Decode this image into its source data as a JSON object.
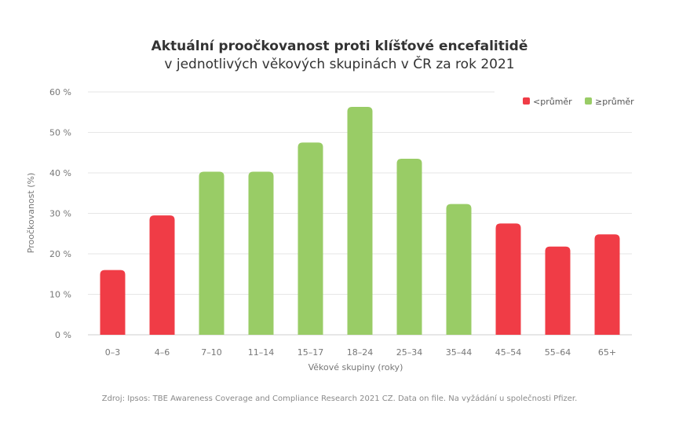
{
  "title": "Aktuální proočkovanost proti klíšťové encefalitidě",
  "subtitle": "v jednotlivých věkových skupinách v ČR za rok 2021",
  "source": "Zdroj: Ipsos: TBE Awareness Coverage and Compliance Research 2021 CZ. Data on file. Na vyžádání u společnosti Pfizer.",
  "chart_data": {
    "type": "bar",
    "xlabel": "Věkové skupiny (roky)",
    "ylabel": "Proočkovanost (%)",
    "ylim": [
      0,
      60
    ],
    "yticks": [
      0,
      10,
      20,
      30,
      40,
      50,
      60
    ],
    "ytick_labels": [
      "0 %",
      "10 %",
      "20 %",
      "30 %",
      "40 %",
      "50 %",
      "60 %"
    ],
    "grid": true,
    "legend_position": "top-right",
    "categories": [
      "0–3",
      "4–6",
      "7–10",
      "11–14",
      "15–17",
      "18–24",
      "25–34",
      "35–44",
      "45–54",
      "55–64",
      "65+"
    ],
    "values": [
      16,
      29.5,
      40.3,
      40.3,
      47.5,
      56.3,
      43.5,
      32.3,
      27.5,
      21.8,
      24.8
    ],
    "groups": [
      "below",
      "below",
      "above",
      "above",
      "above",
      "above",
      "above",
      "above",
      "below",
      "below",
      "below"
    ],
    "legend": [
      {
        "key": "below",
        "label": "<průměr",
        "color": "#f03c46"
      },
      {
        "key": "above",
        "label": "≥průměr",
        "color": "#99cc66"
      }
    ]
  }
}
